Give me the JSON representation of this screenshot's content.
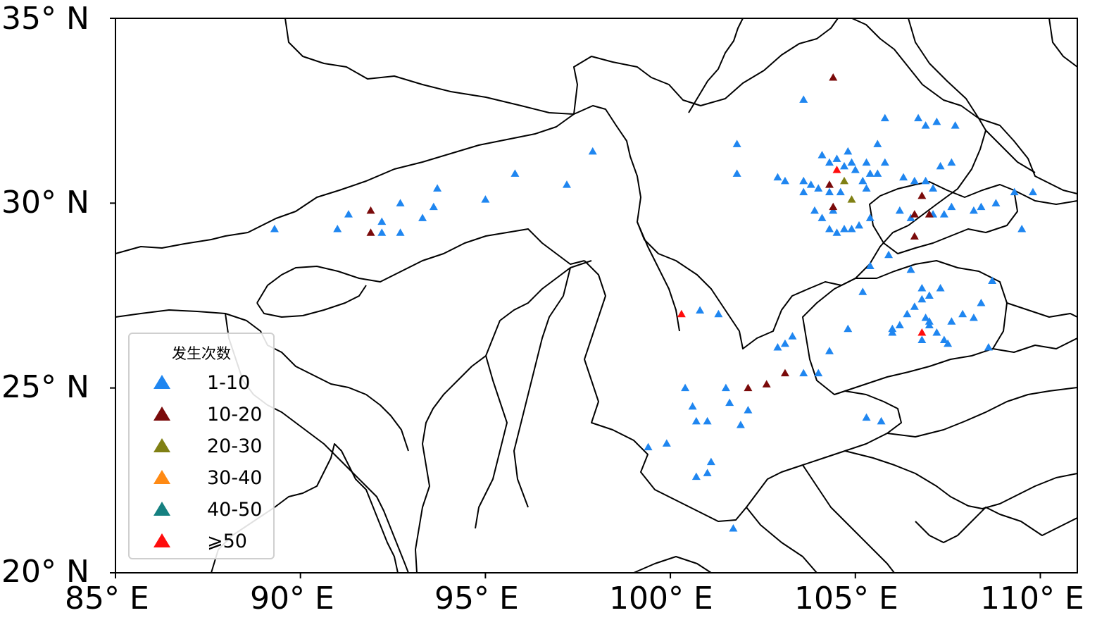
{
  "map": {
    "lon_range": [
      85,
      111
    ],
    "lat_range": [
      20,
      35
    ],
    "lon_ticks": [
      {
        "value": 85,
        "label": "85° E"
      },
      {
        "value": 90,
        "label": "90° E"
      },
      {
        "value": 95,
        "label": "95° E"
      },
      {
        "value": 100,
        "label": "100° E"
      },
      {
        "value": 105,
        "label": "105° E"
      },
      {
        "value": 110,
        "label": "110° E"
      }
    ],
    "lat_ticks": [
      {
        "value": 35,
        "label": "35° N"
      },
      {
        "value": 30,
        "label": "30° N"
      },
      {
        "value": 25,
        "label": "25° N"
      },
      {
        "value": 20,
        "label": "20° N"
      }
    ],
    "background": "#ffffff",
    "boundary_color": "#000000"
  },
  "legend": {
    "title": "发生次数",
    "placement": "lower-left",
    "items": [
      {
        "label": "1-10",
        "color": "#1f86f0"
      },
      {
        "label": "10-20",
        "color": "#7a0a0a"
      },
      {
        "label": "20-30",
        "color": "#808014"
      },
      {
        "label": "30-40",
        "color": "#ff8a14"
      },
      {
        "label": "40-50",
        "color": "#158080"
      },
      {
        "label": "⩾50",
        "color": "#ff0d0d"
      }
    ]
  },
  "points": {
    "class_0": [
      [
        89.3,
        29.3
      ],
      [
        91.0,
        29.3
      ],
      [
        91.3,
        29.7
      ],
      [
        92.2,
        29.5
      ],
      [
        92.2,
        29.2
      ],
      [
        92.7,
        29.2
      ],
      [
        92.7,
        30.0
      ],
      [
        93.3,
        29.6
      ],
      [
        93.6,
        29.9
      ],
      [
        93.7,
        30.4
      ],
      [
        95.0,
        30.1
      ],
      [
        95.8,
        30.8
      ],
      [
        97.2,
        30.5
      ],
      [
        97.9,
        31.4
      ],
      [
        101.8,
        31.6
      ],
      [
        101.8,
        30.8
      ],
      [
        102.9,
        30.7
      ],
      [
        103.1,
        30.6
      ],
      [
        103.6,
        32.8
      ],
      [
        103.6,
        30.6
      ],
      [
        103.8,
        30.5
      ],
      [
        104.0,
        30.4
      ],
      [
        104.3,
        30.3
      ],
      [
        104.1,
        31.3
      ],
      [
        104.3,
        31.1
      ],
      [
        104.5,
        31.2
      ],
      [
        104.7,
        31.0
      ],
      [
        104.9,
        31.1
      ],
      [
        104.8,
        31.4
      ],
      [
        105.0,
        30.9
      ],
      [
        105.3,
        31.1
      ],
      [
        105.4,
        30.8
      ],
      [
        105.2,
        30.6
      ],
      [
        105.6,
        30.8
      ],
      [
        105.8,
        31.1
      ],
      [
        105.6,
        31.6
      ],
      [
        103.9,
        29.8
      ],
      [
        104.1,
        29.6
      ],
      [
        104.3,
        29.3
      ],
      [
        104.5,
        29.2
      ],
      [
        104.7,
        29.3
      ],
      [
        104.9,
        29.3
      ],
      [
        105.1,
        29.4
      ],
      [
        105.4,
        29.6
      ],
      [
        103.6,
        30.3
      ],
      [
        104.6,
        30.3
      ],
      [
        104.4,
        29.8
      ],
      [
        105.3,
        30.4
      ],
      [
        105.8,
        32.3
      ],
      [
        106.7,
        32.3
      ],
      [
        106.9,
        32.1
      ],
      [
        107.2,
        32.2
      ],
      [
        107.7,
        32.1
      ],
      [
        106.3,
        30.7
      ],
      [
        106.6,
        30.6
      ],
      [
        106.9,
        30.6
      ],
      [
        107.1,
        30.4
      ],
      [
        107.3,
        31.0
      ],
      [
        107.6,
        31.1
      ],
      [
        106.2,
        29.8
      ],
      [
        106.5,
        29.6
      ],
      [
        107.1,
        29.7
      ],
      [
        107.4,
        29.7
      ],
      [
        107.6,
        29.9
      ],
      [
        108.2,
        29.8
      ],
      [
        108.4,
        29.9
      ],
      [
        108.8,
        30.0
      ],
      [
        109.3,
        30.3
      ],
      [
        109.8,
        30.3
      ],
      [
        109.5,
        29.3
      ],
      [
        108.7,
        27.9
      ],
      [
        107.3,
        27.7
      ],
      [
        107.0,
        27.5
      ],
      [
        106.8,
        27.4
      ],
      [
        106.6,
        27.2
      ],
      [
        106.4,
        27.0
      ],
      [
        106.2,
        26.7
      ],
      [
        106.0,
        26.5
      ],
      [
        106.8,
        26.3
      ],
      [
        107.0,
        26.7
      ],
      [
        107.2,
        26.5
      ],
      [
        107.4,
        26.3
      ],
      [
        107.6,
        26.8
      ],
      [
        107.9,
        27.0
      ],
      [
        108.2,
        26.9
      ],
      [
        108.4,
        27.3
      ],
      [
        108.6,
        26.1
      ],
      [
        107.5,
        26.2
      ],
      [
        107.0,
        26.8
      ],
      [
        106.9,
        26.9
      ],
      [
        106.8,
        27.7
      ],
      [
        106.5,
        28.2
      ],
      [
        105.9,
        28.6
      ],
      [
        105.4,
        28.3
      ],
      [
        105.2,
        27.6
      ],
      [
        104.8,
        26.6
      ],
      [
        104.3,
        26.0
      ],
      [
        104.0,
        25.4
      ],
      [
        103.6,
        25.4
      ],
      [
        103.3,
        26.4
      ],
      [
        103.1,
        26.2
      ],
      [
        102.9,
        26.1
      ],
      [
        102.1,
        24.4
      ],
      [
        101.9,
        24.0
      ],
      [
        101.5,
        25.0
      ],
      [
        101.6,
        24.6
      ],
      [
        101.0,
        24.1
      ],
      [
        100.7,
        24.1
      ],
      [
        100.6,
        24.5
      ],
      [
        100.4,
        25.0
      ],
      [
        99.9,
        23.5
      ],
      [
        99.4,
        23.4
      ],
      [
        100.7,
        22.6
      ],
      [
        101.0,
        22.7
      ],
      [
        101.1,
        23.0
      ],
      [
        101.7,
        21.2
      ],
      [
        105.3,
        24.2
      ],
      [
        105.7,
        24.1
      ],
      [
        106.0,
        26.6
      ],
      [
        101.3,
        27.0
      ],
      [
        100.8,
        27.1
      ]
    ],
    "class_1": [
      [
        91.9,
        29.8
      ],
      [
        91.9,
        29.2
      ],
      [
        104.4,
        33.4
      ],
      [
        104.3,
        30.5
      ],
      [
        104.4,
        29.9
      ],
      [
        106.8,
        30.2
      ],
      [
        106.6,
        29.7
      ],
      [
        106.6,
        29.1
      ],
      [
        107.0,
        29.7
      ],
      [
        102.1,
        25.0
      ],
      [
        102.6,
        25.1
      ],
      [
        103.1,
        25.4
      ]
    ],
    "class_2": [
      [
        104.7,
        30.6
      ],
      [
        104.9,
        30.1
      ]
    ],
    "class_3": [],
    "class_4": [],
    "class_5": [
      [
        100.3,
        27.0
      ],
      [
        104.5,
        30.9
      ],
      [
        106.8,
        26.5
      ]
    ]
  }
}
